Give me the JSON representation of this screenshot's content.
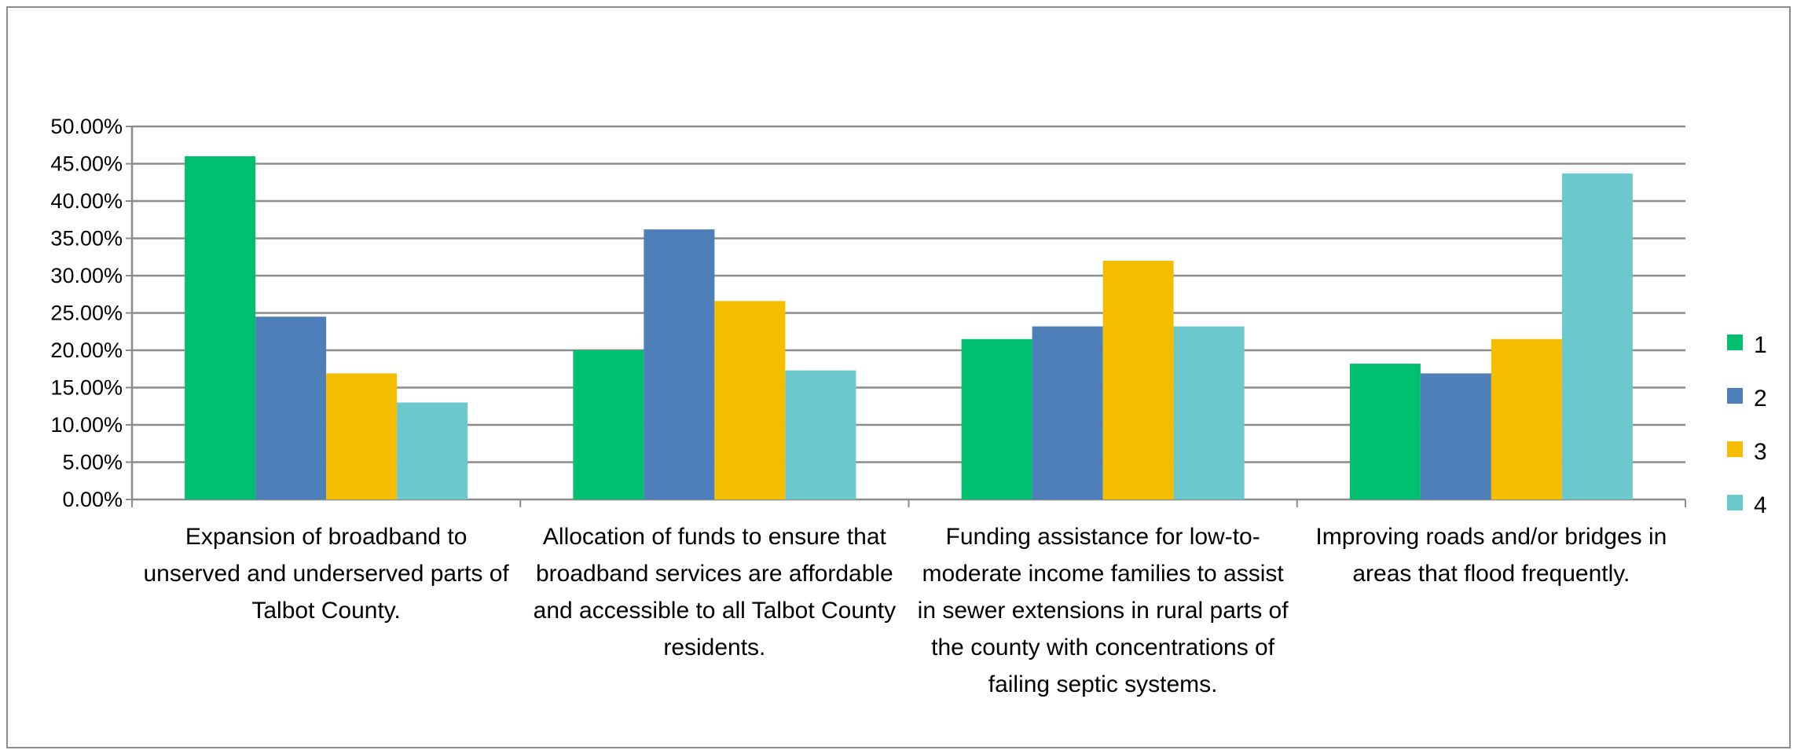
{
  "chart_data": {
    "type": "bar",
    "categories": [
      "Expansion of broadband to unserved and underserved parts of Talbot County.",
      "Allocation of funds to ensure that broadband services are affordable and accessible to all Talbot County residents.",
      "Funding assistance for low-to-moderate income families to assist in sewer extensions in rural parts of the county with concentrations of failing septic systems.",
      "Improving roads and/or bridges in areas that flood frequently."
    ],
    "series": [
      {
        "name": "1",
        "color": "#00bf6f",
        "values": [
          0.46,
          0.2,
          0.215,
          0.182
        ]
      },
      {
        "name": "2",
        "color": "#4f7fb8",
        "values": [
          0.245,
          0.362,
          0.232,
          0.169
        ]
      },
      {
        "name": "3",
        "color": "#f5bd00",
        "values": [
          0.169,
          0.266,
          0.32,
          0.215
        ]
      },
      {
        "name": "4",
        "color": "#6bc8cc",
        "values": [
          0.13,
          0.173,
          0.232,
          0.437
        ]
      }
    ],
    "y_ticks": [
      "0.00%",
      "5.00%",
      "10.00%",
      "15.00%",
      "20.00%",
      "25.00%",
      "30.00%",
      "35.00%",
      "40.00%",
      "45.00%",
      "50.00%"
    ],
    "ylim": [
      0,
      0.5
    ],
    "grid": true,
    "legend_position": "right",
    "title": "",
    "xlabel": "",
    "ylabel": ""
  }
}
